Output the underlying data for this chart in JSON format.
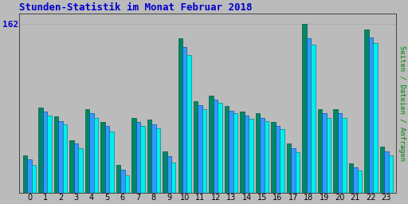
{
  "title": "Stunden-Statistik im Monat Februar 2018",
  "title_color": "#0000cc",
  "ylabel": "Seiten / Dateien / Anfragen",
  "ylabel_color": "#008800",
  "background_color": "#bbbbbb",
  "hours": [
    0,
    1,
    2,
    3,
    4,
    5,
    6,
    7,
    8,
    9,
    10,
    11,
    12,
    13,
    14,
    15,
    16,
    17,
    18,
    19,
    20,
    21,
    22,
    23
  ],
  "seiten": [
    36,
    82,
    73,
    50,
    80,
    68,
    27,
    72,
    70,
    40,
    148,
    88,
    93,
    83,
    78,
    76,
    68,
    47,
    162,
    80,
    80,
    28,
    157,
    44
  ],
  "dateien": [
    32,
    78,
    69,
    47,
    76,
    64,
    22,
    68,
    66,
    35,
    140,
    84,
    89,
    79,
    74,
    72,
    64,
    43,
    148,
    76,
    76,
    24,
    149,
    40
  ],
  "anfragen": [
    27,
    74,
    66,
    43,
    72,
    59,
    17,
    64,
    62,
    29,
    132,
    80,
    86,
    76,
    71,
    69,
    61,
    39,
    142,
    72,
    72,
    21,
    144,
    36
  ],
  "color_green": "#008866",
  "color_blue": "#3399ff",
  "color_cyan": "#00eeee",
  "edge_color": "#005544",
  "bar_width": 0.28,
  "ylim_max": 172,
  "ytick_val": 162,
  "grid_color": "#aaaaaa",
  "grid_linewidth": 0.6
}
